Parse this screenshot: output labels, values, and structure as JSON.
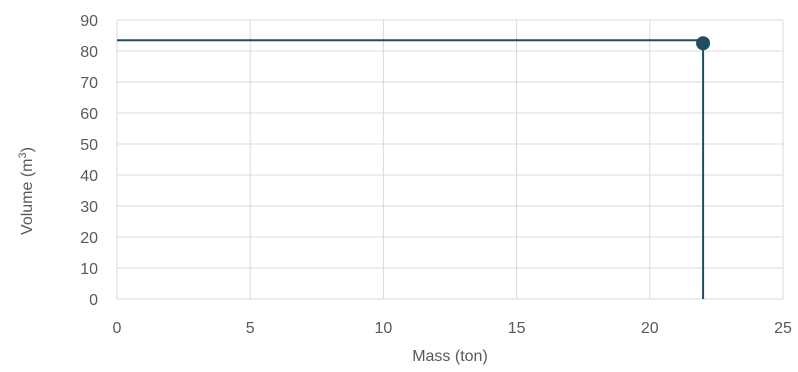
{
  "chart_data": {
    "type": "scatter",
    "title": "",
    "xlabel": "Mass (ton)",
    "ylabel_prefix": "Volume (m",
    "ylabel_sup": "3",
    "ylabel_suffix": ")",
    "xlim": [
      0,
      25
    ],
    "ylim": [
      0,
      90
    ],
    "x_ticks": [
      0,
      5,
      10,
      15,
      20,
      25
    ],
    "y_ticks": [
      0,
      10,
      20,
      30,
      40,
      50,
      60,
      70,
      80,
      90
    ],
    "grid": true,
    "legend": "none",
    "series": [
      {
        "x": [
          22
        ],
        "y": [
          82.5
        ]
      }
    ],
    "reference_lines": [
      {
        "orientation": "horizontal",
        "value": 82.5
      },
      {
        "orientation": "vertical",
        "value": 22
      }
    ],
    "colors": {
      "series": "#1f4e5f",
      "grid": "#d9d9d9",
      "text": "#595959"
    }
  }
}
